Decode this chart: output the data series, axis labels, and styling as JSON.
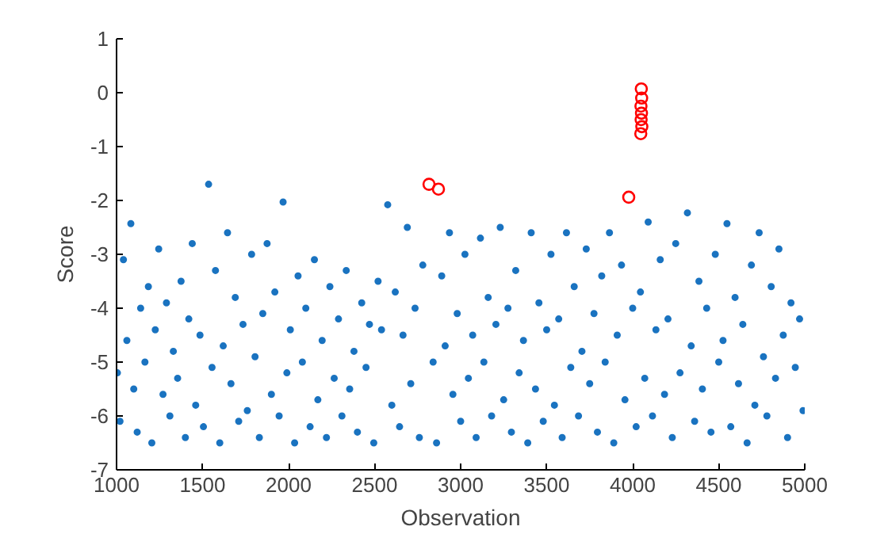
{
  "chart_data": {
    "type": "scatter",
    "xlabel": "Observation",
    "ylabel": "Score",
    "xlim": [
      1000,
      5000
    ],
    "ylim": [
      -7,
      1
    ],
    "xticks": [
      1000,
      1500,
      2000,
      2500,
      3000,
      3500,
      4000,
      4500,
      5000
    ],
    "yticks": [
      -7,
      -6,
      -5,
      -4,
      -3,
      -2,
      -1,
      0,
      1
    ],
    "grid": false,
    "marker": "circle",
    "series": [
      {
        "color": "#1a73c0",
        "x": [
          1005,
          1020,
          1040,
          1060,
          1083,
          1100,
          1120,
          1140,
          1165,
          1185,
          1205,
          1225,
          1245,
          1270,
          1290,
          1310,
          1330,
          1355,
          1375,
          1400,
          1420,
          1440,
          1460,
          1485,
          1505,
          1535,
          1555,
          1575,
          1600,
          1620,
          1645,
          1665,
          1690,
          1710,
          1735,
          1760,
          1785,
          1805,
          1830,
          1850,
          1875,
          1900,
          1920,
          1945,
          1968,
          1990,
          2010,
          2035,
          2055,
          2080,
          2100,
          2125,
          2150,
          2170,
          2195,
          2220,
          2240,
          2265,
          2290,
          2310,
          2335,
          2355,
          2380,
          2400,
          2425,
          2450,
          2470,
          2495,
          2520,
          2540,
          2576,
          2600,
          2620,
          2645,
          2665,
          2690,
          2710,
          2735,
          2760,
          2780,
          2840,
          2860,
          2890,
          2910,
          2935,
          2955,
          2980,
          3000,
          3025,
          3045,
          3070,
          3090,
          3115,
          3135,
          3160,
          3180,
          3205,
          3230,
          3250,
          3275,
          3295,
          3320,
          3340,
          3365,
          3390,
          3410,
          3435,
          3455,
          3480,
          3500,
          3525,
          3545,
          3570,
          3590,
          3615,
          3640,
          3660,
          3685,
          3705,
          3730,
          3750,
          3775,
          3795,
          3820,
          3840,
          3865,
          3890,
          3910,
          3935,
          3955,
          4000,
          4020,
          4045,
          4070,
          4090,
          4115,
          4135,
          4160,
          4185,
          4205,
          4230,
          4250,
          4275,
          4318,
          4340,
          4360,
          4385,
          4405,
          4430,
          4455,
          4480,
          4500,
          4525,
          4548,
          4570,
          4595,
          4615,
          4640,
          4665,
          4690,
          4710,
          4735,
          4760,
          4780,
          4805,
          4830,
          4850,
          4875,
          4900,
          4920,
          4945,
          4970,
          4990
        ],
        "values": [
          -5.2,
          -6.1,
          -3.1,
          -4.6,
          -2.43,
          -5.5,
          -6.3,
          -4.0,
          -5.0,
          -3.6,
          -6.5,
          -4.4,
          -2.9,
          -5.6,
          -3.9,
          -6.0,
          -4.8,
          -5.3,
          -3.5,
          -6.4,
          -4.2,
          -2.8,
          -5.8,
          -4.5,
          -6.2,
          -1.7,
          -5.1,
          -3.3,
          -6.5,
          -4.7,
          -2.6,
          -5.4,
          -3.8,
          -6.1,
          -4.3,
          -5.9,
          -3.0,
          -4.9,
          -6.4,
          -4.1,
          -2.8,
          -5.6,
          -3.7,
          -6.0,
          -2.03,
          -5.2,
          -4.4,
          -6.5,
          -3.4,
          -5.0,
          -4.0,
          -6.2,
          -3.1,
          -5.7,
          -4.6,
          -6.4,
          -3.6,
          -5.3,
          -4.2,
          -6.0,
          -3.3,
          -5.5,
          -4.8,
          -6.3,
          -3.9,
          -5.1,
          -4.3,
          -6.5,
          -3.5,
          -4.4,
          -2.08,
          -5.8,
          -3.7,
          -6.2,
          -4.5,
          -2.5,
          -5.4,
          -4.0,
          -6.4,
          -3.2,
          -5.0,
          -6.5,
          -3.4,
          -4.7,
          -2.6,
          -5.6,
          -4.1,
          -6.1,
          -3.0,
          -5.3,
          -4.5,
          -6.4,
          -2.7,
          -5.0,
          -3.8,
          -6.0,
          -4.3,
          -2.5,
          -5.7,
          -4.0,
          -6.3,
          -3.3,
          -5.2,
          -4.6,
          -6.5,
          -2.6,
          -5.5,
          -3.9,
          -6.1,
          -4.4,
          -3.0,
          -5.8,
          -4.2,
          -6.4,
          -2.6,
          -5.1,
          -3.6,
          -6.0,
          -4.8,
          -2.9,
          -5.4,
          -4.1,
          -6.3,
          -3.4,
          -5.0,
          -2.6,
          -6.5,
          -4.5,
          -3.2,
          -5.7,
          -4.0,
          -6.2,
          -3.7,
          -5.3,
          -2.4,
          -6.0,
          -4.4,
          -3.1,
          -5.6,
          -4.2,
          -6.4,
          -2.8,
          -5.2,
          -2.23,
          -4.7,
          -6.1,
          -3.5,
          -5.5,
          -4.0,
          -6.3,
          -3.0,
          -5.0,
          -4.6,
          -2.43,
          -6.2,
          -3.8,
          -5.4,
          -4.3,
          -6.5,
          -3.2,
          -5.8,
          -2.6,
          -4.9,
          -6.0,
          -3.6,
          -5.3,
          -2.9,
          -4.5,
          -6.4,
          -3.9,
          -5.1,
          -4.2,
          -5.9
        ]
      },
      {
        "color": "#ff0000",
        "x": [
          2816,
          2871,
          3977,
          4050,
          4052,
          4048,
          4051,
          4049,
          4053,
          4047
        ],
        "values": [
          -1.7,
          -1.79,
          -1.94,
          0.07,
          -0.1,
          -0.25,
          -0.38,
          -0.5,
          -0.63,
          -0.76
        ]
      }
    ]
  }
}
